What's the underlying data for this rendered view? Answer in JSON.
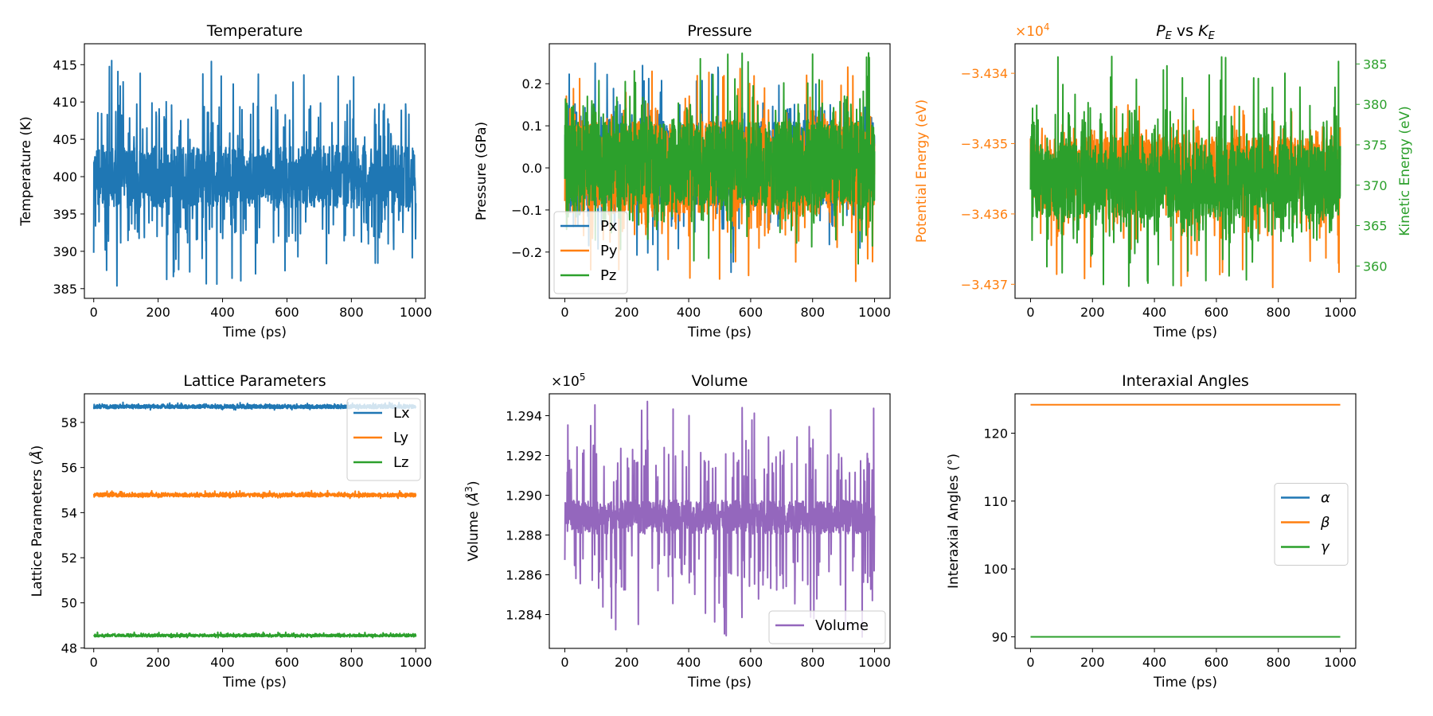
{
  "chart_data": [
    {
      "type": "line",
      "title": "Temperature",
      "xlabel": "Time (ps)",
      "ylabel": "Temperature (K)",
      "xlim": [
        -29,
        1029
      ],
      "ylim": [
        383.7,
        417.8
      ],
      "xticks": [
        0,
        200,
        400,
        600,
        800,
        1000
      ],
      "yticks": [
        385,
        390,
        395,
        400,
        405,
        410,
        415
      ],
      "series": [
        {
          "name": "Temperature",
          "color": "#1f77b4",
          "center": 400,
          "band": 4.2,
          "spike_up": 16.5,
          "spike_down": 15.0
        }
      ]
    },
    {
      "type": "line",
      "title": "Pressure",
      "xlabel": "Time (ps)",
      "ylabel": "Pressure (GPa)",
      "xlim": [
        -50,
        1050
      ],
      "ylim": [
        -0.31,
        0.295
      ],
      "xticks": [
        0,
        200,
        400,
        600,
        800,
        1000
      ],
      "yticks": [
        -0.2,
        -0.1,
        0.0,
        0.1,
        0.2
      ],
      "legend": "lower-left",
      "series": [
        {
          "name": "Px",
          "color": "#1f77b4",
          "center": 0.01,
          "band": 0.1,
          "spike_up": 0.24,
          "spike_down": 0.26
        },
        {
          "name": "Py",
          "color": "#ff7f0e",
          "center": 0.0,
          "band": 0.11,
          "spike_up": 0.24,
          "spike_down": 0.27
        },
        {
          "name": "Pz",
          "color": "#2ca02c",
          "center": 0.01,
          "band": 0.1,
          "spike_up": 0.27,
          "spike_down": 0.24
        }
      ]
    },
    {
      "type": "line",
      "title_main": "P",
      "title_sub1": "E",
      "title_mid": " vs ",
      "title_main2": "K",
      "title_sub2": "E",
      "xlabel": "Time (ps)",
      "ylabel": "Potential Energy (eV)",
      "ylabel2": "Kinetic Energy (eV)",
      "offset_text": "×10",
      "offset_exp": "4",
      "xlim": [
        -50,
        1050
      ],
      "ylim": [
        -3.4372,
        -3.43358
      ],
      "ylim2": [
        356,
        387.5
      ],
      "xticks": [
        0,
        200,
        400,
        600,
        800,
        1000
      ],
      "yticks": [
        -3.437,
        -3.436,
        -3.435,
        -3.434
      ],
      "ytick_labels": [
        "−3.437",
        "−3.436",
        "−3.435",
        "−3.434"
      ],
      "yticks2": [
        360,
        365,
        370,
        375,
        380,
        385
      ],
      "color_left": "#ff7f0e",
      "color_right": "#2ca02c",
      "series": [
        {
          "name": "Potential Energy",
          "color": "#ff7f0e",
          "axis": "left",
          "center": -3.43535,
          "band": 0.00045,
          "spike_up": 0.00098,
          "spike_down": 0.0017
        },
        {
          "name": "Kinetic Energy",
          "color": "#2ca02c",
          "axis": "right",
          "center": 370.5,
          "band": 4.5,
          "spike_up": 15.5,
          "spike_down": 13.0
        }
      ]
    },
    {
      "type": "line",
      "title": "Lattice Parameters",
      "xlabel": "Time (ps)",
      "ylabel_main": "Lattice Parameters (",
      "ylabel_unit": "Å",
      "ylabel_end": ")",
      "xlim": [
        -29,
        1029
      ],
      "ylim": [
        47.98,
        59.27
      ],
      "xticks": [
        0,
        200,
        400,
        600,
        800,
        1000
      ],
      "yticks": [
        48,
        50,
        52,
        54,
        56,
        58
      ],
      "legend": "upper-right",
      "series": [
        {
          "name": "Lx",
          "color": "#1f77b4",
          "center": 58.7,
          "band": 0.08,
          "spike_up": 0.2,
          "spike_down": 0.15
        },
        {
          "name": "Ly",
          "color": "#ff7f0e",
          "center": 54.78,
          "band": 0.08,
          "spike_up": 0.2,
          "spike_down": 0.15
        },
        {
          "name": "Lz",
          "color": "#2ca02c",
          "center": 48.55,
          "band": 0.05,
          "spike_up": 0.15,
          "spike_down": 0.1
        }
      ]
    },
    {
      "type": "line",
      "title": "Volume",
      "xlabel": "Time (ps)",
      "ylabel_main": "Volume (",
      "ylabel_unit": "Å",
      "ylabel_exp": "3",
      "ylabel_end": ")",
      "offset_text": "×10",
      "offset_exp": "5",
      "xlim": [
        -50,
        1050
      ],
      "ylim": [
        1.2823,
        1.2951
      ],
      "xticks": [
        0,
        200,
        400,
        600,
        800,
        1000
      ],
      "yticks": [
        1.284,
        1.286,
        1.288,
        1.29,
        1.292,
        1.294
      ],
      "legend": "lower-right",
      "series": [
        {
          "name": "Volume",
          "color": "#9467bd",
          "center": 1.2889,
          "band": 0.00085,
          "spike_up": 0.0059,
          "spike_down": 0.0062
        }
      ]
    },
    {
      "type": "line",
      "title": "Interaxial Angles",
      "xlabel": "Time (ps)",
      "ylabel": "Interaxial Angles (°)",
      "xlim": [
        -50,
        1050
      ],
      "ylim": [
        88.3,
        125.8
      ],
      "xticks": [
        0,
        200,
        400,
        600,
        800,
        1000
      ],
      "yticks": [
        90,
        100,
        110,
        120
      ],
      "legend": "center-right",
      "series": [
        {
          "name": "α",
          "color": "#1f77b4",
          "center": 90,
          "band": 0,
          "spike_up": 0,
          "spike_down": 0
        },
        {
          "name": "β",
          "color": "#ff7f0e",
          "center": 124.2,
          "band": 0,
          "spike_up": 0,
          "spike_down": 0
        },
        {
          "name": "γ",
          "color": "#2ca02c",
          "center": 90,
          "band": 0,
          "spike_up": 0,
          "spike_down": 0
        }
      ]
    }
  ]
}
